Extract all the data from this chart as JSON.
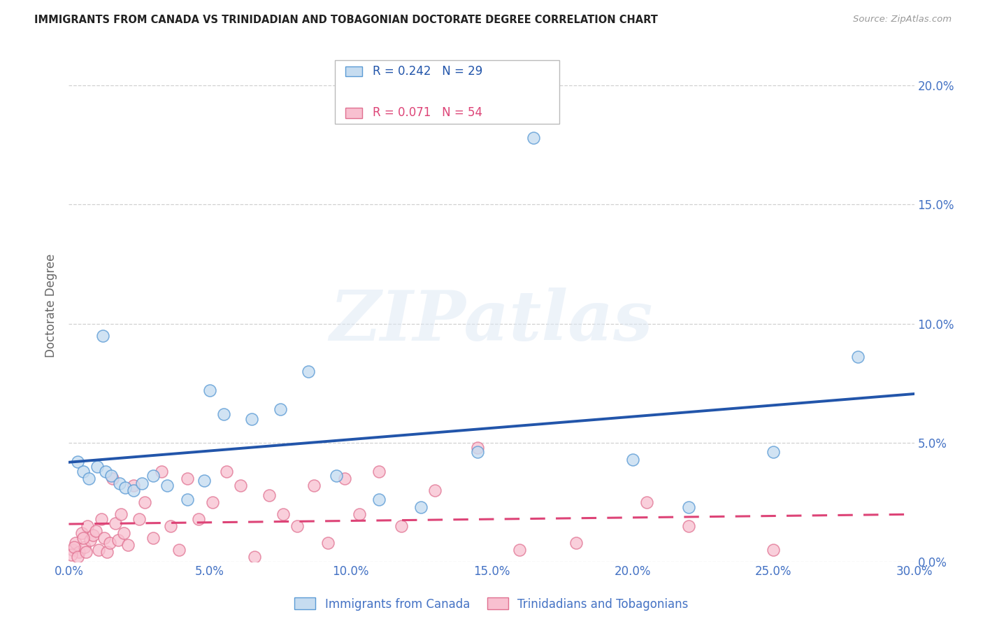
{
  "title": "IMMIGRANTS FROM CANADA VS TRINIDADIAN AND TOBAGONIAN DOCTORATE DEGREE CORRELATION CHART",
  "source": "Source: ZipAtlas.com",
  "ylabel": "Doctorate Degree",
  "xlim": [
    0.0,
    30.0
  ],
  "ylim": [
    0.0,
    21.5
  ],
  "yticks": [
    0.0,
    5.0,
    10.0,
    15.0,
    20.0
  ],
  "xticks": [
    0.0,
    5.0,
    10.0,
    15.0,
    20.0,
    25.0,
    30.0
  ],
  "canada_R": 0.242,
  "canada_N": 29,
  "trini_R": 0.071,
  "trini_N": 54,
  "canada_fill": "#c6dcf0",
  "canada_edge": "#5b9bd5",
  "canada_line": "#2255aa",
  "trini_fill": "#f8c0d0",
  "trini_edge": "#e07090",
  "trini_line": "#dd4477",
  "axis_label_color": "#4472c4",
  "grid_color": "#cccccc",
  "title_color": "#222222",
  "source_color": "#999999",
  "ylabel_color": "#666666",
  "bg_color": "#ffffff",
  "watermark": "ZIPatlas",
  "canada_x": [
    0.3,
    0.5,
    0.7,
    1.0,
    1.3,
    1.5,
    1.8,
    2.0,
    2.3,
    2.6,
    3.0,
    3.5,
    4.2,
    5.0,
    5.5,
    6.5,
    7.5,
    8.5,
    11.0,
    12.5,
    14.5,
    20.0,
    22.0,
    25.0,
    28.0,
    9.5,
    16.5,
    4.8,
    1.2
  ],
  "canada_y": [
    4.2,
    3.8,
    3.5,
    4.0,
    3.8,
    3.6,
    3.3,
    3.1,
    3.0,
    3.3,
    3.6,
    3.2,
    2.6,
    7.2,
    6.2,
    6.0,
    6.4,
    8.0,
    2.6,
    2.3,
    4.6,
    4.3,
    2.3,
    4.6,
    8.6,
    3.6,
    17.8,
    3.4,
    9.5
  ],
  "trini_x": [
    0.15,
    0.25,
    0.35,
    0.45,
    0.55,
    0.65,
    0.75,
    0.85,
    0.95,
    1.05,
    1.15,
    1.25,
    1.35,
    1.45,
    1.55,
    1.65,
    1.75,
    1.85,
    1.95,
    2.1,
    2.3,
    2.5,
    2.7,
    3.0,
    3.3,
    3.6,
    3.9,
    4.2,
    4.6,
    5.1,
    5.6,
    6.1,
    6.6,
    7.1,
    7.6,
    8.1,
    8.7,
    9.2,
    9.8,
    10.3,
    11.0,
    11.8,
    13.0,
    14.5,
    16.0,
    18.0,
    20.5,
    22.0,
    25.0,
    0.1,
    0.2,
    0.3,
    0.5,
    0.6
  ],
  "trini_y": [
    0.5,
    0.8,
    0.4,
    1.2,
    0.6,
    1.5,
    0.9,
    1.1,
    1.3,
    0.5,
    1.8,
    1.0,
    0.4,
    0.8,
    3.5,
    1.6,
    0.9,
    2.0,
    1.2,
    0.7,
    3.2,
    1.8,
    2.5,
    1.0,
    3.8,
    1.5,
    0.5,
    3.5,
    1.8,
    2.5,
    3.8,
    3.2,
    0.2,
    2.8,
    2.0,
    1.5,
    3.2,
    0.8,
    3.5,
    2.0,
    3.8,
    1.5,
    3.0,
    4.8,
    0.5,
    0.8,
    2.5,
    1.5,
    0.5,
    0.3,
    0.6,
    0.2,
    1.0,
    0.4
  ]
}
